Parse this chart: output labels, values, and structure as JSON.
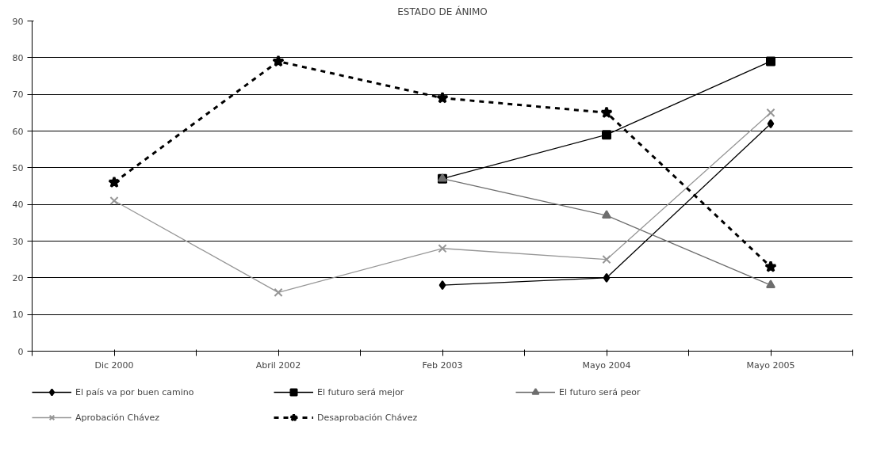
{
  "chart_data": {
    "type": "line",
    "title": "ESTADO DE ÁNIMO",
    "categories": [
      "Dic 2000",
      "Abril 2002",
      "Feb 2003",
      "Mayo 2004",
      "Mayo 2005"
    ],
    "ylim": [
      0,
      90
    ],
    "yticks": [
      0,
      10,
      20,
      30,
      40,
      50,
      60,
      70,
      80,
      90
    ],
    "grid": "y",
    "legend": "bottom",
    "series": [
      {
        "name": "El país va por buen camino",
        "color": "#000000",
        "marker": "diamond",
        "line_style": "solid",
        "values": [
          null,
          null,
          18,
          20,
          62
        ]
      },
      {
        "name": "El futuro será mejor",
        "color": "#000000",
        "marker": "square",
        "line_style": "solid",
        "values": [
          null,
          null,
          47,
          59,
          79
        ]
      },
      {
        "name": "El futuro será peor",
        "color": "#6e6e6e",
        "marker": "triangle",
        "line_style": "solid",
        "values": [
          null,
          null,
          47,
          37,
          18
        ]
      },
      {
        "name": "Aprobación Chávez",
        "color": "#969696",
        "marker": "cross",
        "line_style": "solid",
        "values": [
          41,
          16,
          28,
          25,
          65
        ]
      },
      {
        "name": "Desaprobación Chávez",
        "color": "#000000",
        "marker": "star",
        "line_style": "dashed",
        "values": [
          46,
          79,
          69,
          65,
          23
        ]
      }
    ]
  }
}
